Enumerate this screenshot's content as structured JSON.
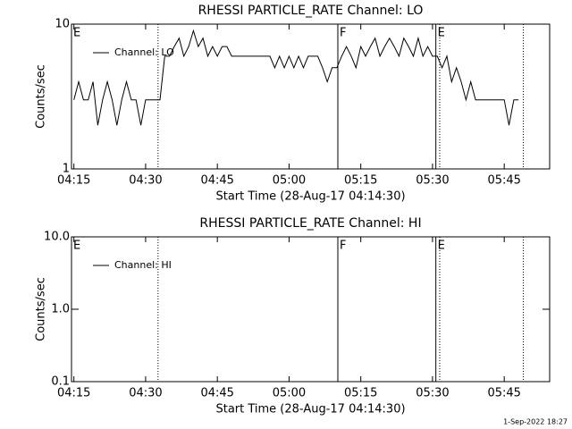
{
  "chart_data": [
    {
      "type": "line",
      "title": "RHESSI PARTICLE_RATE Channel: LO",
      "xlabel": "Start Time (28-Aug-17 04:14:30)",
      "ylabel": "Counts/sec",
      "log_y": true,
      "xlim": [
        "04:14:30",
        "05:54:30"
      ],
      "xticks": [
        "04:15",
        "04:30",
        "04:45",
        "05:00",
        "05:15",
        "05:30",
        "05:45"
      ],
      "ylim": [
        1,
        10
      ],
      "yticks": [
        1,
        10
      ],
      "legend": "upper left",
      "flags": [
        {
          "x": "04:14:30",
          "label": "E"
        },
        {
          "x": "05:10:12",
          "label": "F"
        },
        {
          "x": "05:30:42",
          "label": "E"
        }
      ],
      "dotted_lines": [
        "04:32:36",
        "05:31:30",
        "05:49:00"
      ],
      "series": [
        {
          "name": "Channel: LO",
          "color": "#000000",
          "x": [
            "04:15",
            "04:16",
            "04:17",
            "04:18",
            "04:19",
            "04:20",
            "04:21",
            "04:22",
            "04:23",
            "04:24",
            "04:25",
            "04:26",
            "04:27",
            "04:28",
            "04:29",
            "04:30",
            "04:31",
            "04:32",
            "04:33",
            "04:34",
            "04:35",
            "04:36",
            "04:37",
            "04:38",
            "04:39",
            "04:40",
            "04:41",
            "04:42",
            "04:43",
            "04:44",
            "04:45",
            "04:46",
            "04:47",
            "04:48",
            "04:49",
            "04:50",
            "04:51",
            "04:52",
            "04:53",
            "04:54",
            "04:55",
            "04:56",
            "04:57",
            "04:58",
            "04:59",
            "05:00",
            "05:01",
            "05:02",
            "05:03",
            "05:04",
            "05:05",
            "05:06",
            "05:07",
            "05:08",
            "05:09",
            "05:10",
            "05:11",
            "05:12",
            "05:13",
            "05:14",
            "05:15",
            "05:16",
            "05:17",
            "05:18",
            "05:19",
            "05:20",
            "05:21",
            "05:22",
            "05:23",
            "05:24",
            "05:25",
            "05:26",
            "05:27",
            "05:28",
            "05:29",
            "05:30",
            "05:31",
            "05:32",
            "05:33",
            "05:34",
            "05:35",
            "05:36",
            "05:37",
            "05:38",
            "05:39",
            "05:40",
            "05:41",
            "05:42",
            "05:43",
            "05:44",
            "05:45",
            "05:46",
            "05:47",
            "05:48"
          ],
          "values": [
            3,
            4,
            3,
            3,
            4,
            2,
            3,
            4,
            3,
            2,
            3,
            4,
            3,
            3,
            2,
            3,
            3,
            3,
            3,
            6,
            6,
            7,
            8,
            6,
            7,
            9,
            7,
            8,
            6,
            7,
            6,
            7,
            7,
            6,
            6,
            6,
            6,
            6,
            6,
            6,
            6,
            6,
            5,
            6,
            5,
            6,
            5,
            6,
            5,
            6,
            6,
            6,
            5,
            4,
            5,
            5,
            6,
            7,
            6,
            5,
            7,
            6,
            7,
            8,
            6,
            7,
            8,
            7,
            6,
            8,
            7,
            6,
            8,
            6,
            7,
            6,
            6,
            5,
            6,
            4,
            5,
            4,
            3,
            4,
            3,
            3,
            3,
            3,
            3,
            3,
            3,
            2,
            3,
            3
          ]
        }
      ]
    },
    {
      "type": "line",
      "title": "RHESSI PARTICLE_RATE Channel: HI",
      "xlabel": "Start Time (28-Aug-17 04:14:30)",
      "ylabel": "Counts/sec",
      "log_y": true,
      "xlim": [
        "04:14:30",
        "05:54:30"
      ],
      "xticks": [
        "04:15",
        "04:30",
        "04:45",
        "05:00",
        "05:15",
        "05:30",
        "05:45"
      ],
      "ylim": [
        0.1,
        10
      ],
      "yticks": [
        0.1,
        {
          "value": 1,
          "label": "1.0"
        },
        {
          "value": 10,
          "label": "10.0"
        }
      ],
      "legend": "upper left",
      "flags": [
        {
          "x": "04:14:30",
          "label": "E"
        },
        {
          "x": "05:10:12",
          "label": "F"
        },
        {
          "x": "05:30:42",
          "label": "E"
        }
      ],
      "dotted_lines": [
        "04:32:36",
        "05:31:30",
        "05:49:00"
      ],
      "series": [
        {
          "name": "Channel: HI",
          "color": "#000000",
          "x": [],
          "values": []
        }
      ]
    }
  ],
  "footer": "1-Sep-2022 18:27"
}
